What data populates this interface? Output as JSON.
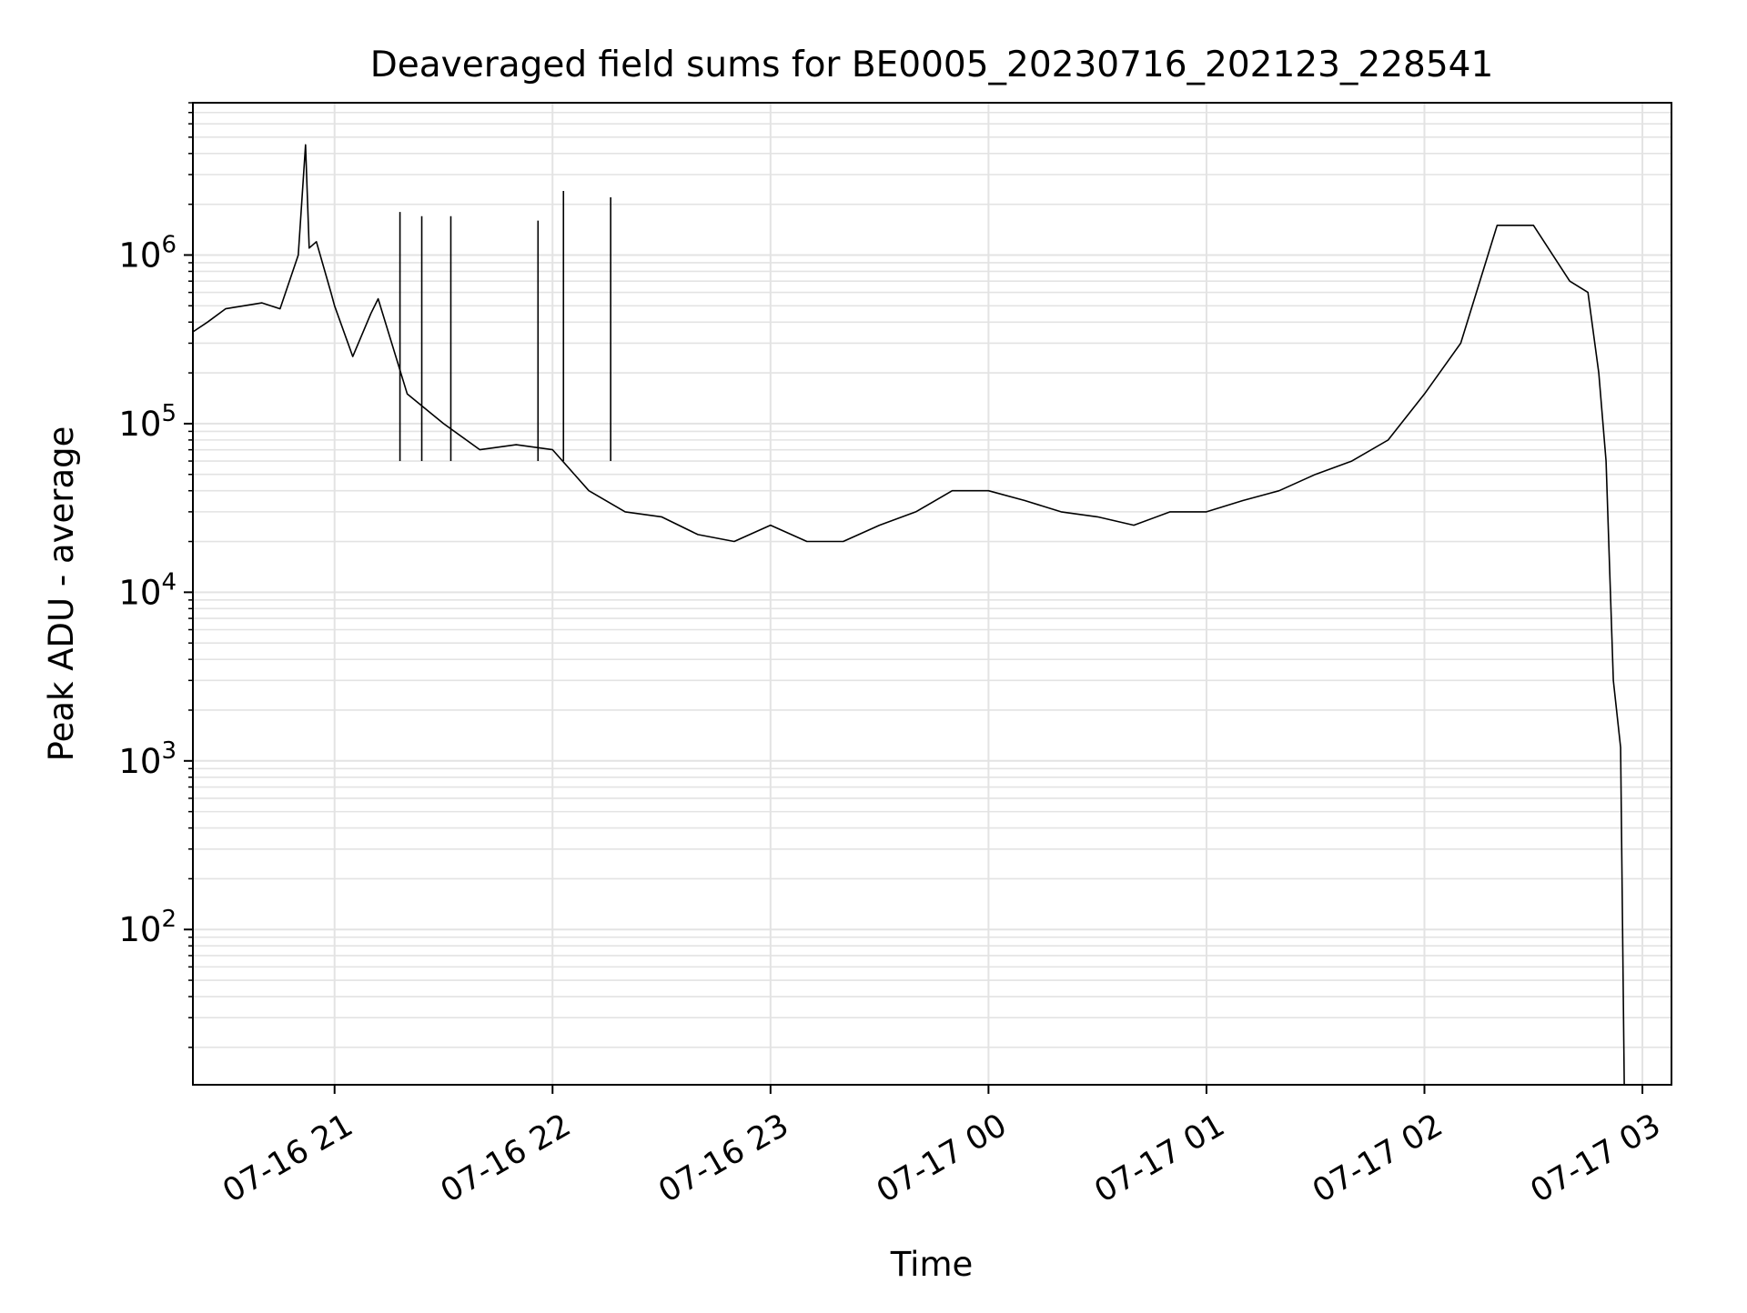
{
  "chart_data": {
    "type": "line",
    "title": "Deaveraged field sums for BE0005_20230716_202123_228541",
    "xlabel": "Time",
    "ylabel": "Peak ADU - average",
    "yscale": "log",
    "grid": true,
    "x_tick_labels": [
      "07-16 21",
      "07-16 22",
      "07-16 23",
      "07-17 00",
      "07-17 01",
      "07-17 02",
      "07-17 03"
    ],
    "x_ticks": [
      "2023-07-16 21:00",
      "2023-07-16 22:00",
      "2023-07-16 23:00",
      "2023-07-17 00:00",
      "2023-07-17 01:00",
      "2023-07-17 02:00",
      "2023-07-17 03:00"
    ],
    "xlim": [
      "2023-07-16 20:21",
      "2023-07-17 03:08"
    ],
    "y_ticks": [
      100,
      1000,
      10000,
      100000,
      1000000
    ],
    "y_tick_labels": [
      {
        "base": "10",
        "exp": "2"
      },
      {
        "base": "10",
        "exp": "3"
      },
      {
        "base": "10",
        "exp": "4"
      },
      {
        "base": "10",
        "exp": "5"
      },
      {
        "base": "10",
        "exp": "6"
      }
    ],
    "ylim": [
      12,
      8000000
    ],
    "line_color": "#000000",
    "series": [
      {
        "x": [
          "2023-07-16 20:21",
          "2023-07-16 20:25",
          "2023-07-16 20:30",
          "2023-07-16 20:35",
          "2023-07-16 20:40",
          "2023-07-16 20:45",
          "2023-07-16 20:50",
          "2023-07-16 20:52",
          "2023-07-16 20:53",
          "2023-07-16 20:55",
          "2023-07-16 20:59",
          "2023-07-16 21:00",
          "2023-07-16 21:05",
          "2023-07-16 21:10",
          "2023-07-16 21:12",
          "2023-07-16 21:20",
          "2023-07-16 21:30",
          "2023-07-16 21:40",
          "2023-07-16 21:50",
          "2023-07-16 22:00",
          "2023-07-16 22:10",
          "2023-07-16 22:20",
          "2023-07-16 22:30",
          "2023-07-16 22:40",
          "2023-07-16 22:50",
          "2023-07-16 23:00",
          "2023-07-16 23:10",
          "2023-07-16 23:20",
          "2023-07-16 23:30",
          "2023-07-16 23:40",
          "2023-07-16 23:50",
          "2023-07-17 00:00",
          "2023-07-17 00:10",
          "2023-07-17 00:20",
          "2023-07-17 00:30",
          "2023-07-17 00:40",
          "2023-07-17 00:50",
          "2023-07-17 01:00",
          "2023-07-17 01:10",
          "2023-07-17 01:20",
          "2023-07-17 01:30",
          "2023-07-17 01:40",
          "2023-07-17 01:50",
          "2023-07-17 02:00",
          "2023-07-17 02:10",
          "2023-07-17 02:20",
          "2023-07-17 02:30",
          "2023-07-17 02:40",
          "2023-07-17 02:45",
          "2023-07-17 02:48",
          "2023-07-17 02:50",
          "2023-07-17 02:52",
          "2023-07-17 02:54",
          "2023-07-17 02:55"
        ],
        "y": [
          350000,
          400000,
          480000,
          500000,
          520000,
          480000,
          1000000,
          4500000,
          1100000,
          1200000,
          600000,
          500000,
          250000,
          450000,
          550000,
          150000,
          100000,
          70000,
          75000,
          70000,
          40000,
          30000,
          28000,
          22000,
          20000,
          25000,
          20000,
          20000,
          25000,
          30000,
          40000,
          40000,
          35000,
          30000,
          28000,
          25000,
          30000,
          30000,
          35000,
          40000,
          50000,
          60000,
          80000,
          150000,
          300000,
          1500000,
          1500000,
          700000,
          600000,
          200000,
          60000,
          3000,
          1200,
          12
        ]
      }
    ],
    "spikes": [
      {
        "x": "2023-07-16 21:18",
        "y": 1800000
      },
      {
        "x": "2023-07-16 21:24",
        "y": 1700000
      },
      {
        "x": "2023-07-16 21:32",
        "y": 1700000
      },
      {
        "x": "2023-07-16 21:56",
        "y": 1600000
      },
      {
        "x": "2023-07-16 22:03",
        "y": 2400000
      },
      {
        "x": "2023-07-16 22:16",
        "y": 2200000
      }
    ]
  }
}
